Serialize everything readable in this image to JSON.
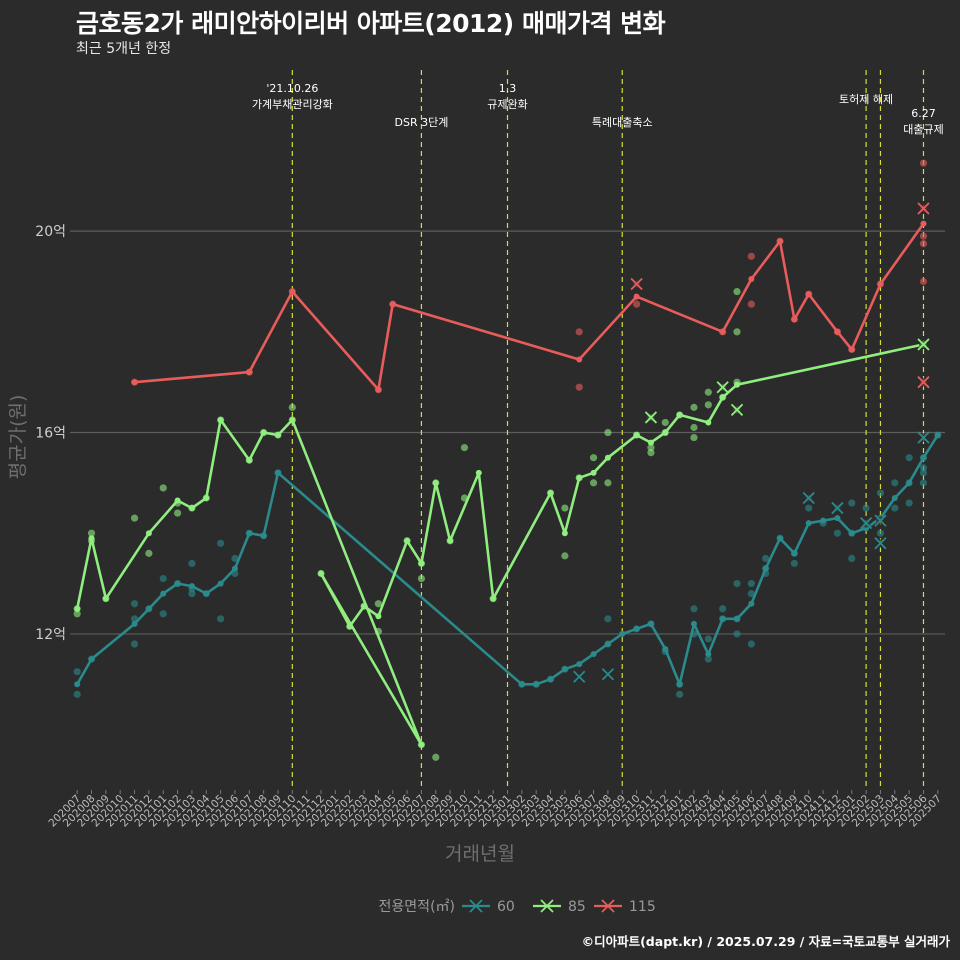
{
  "title": "금호동2가 래미안하이리버 아파트(2012) 매매가격 변화",
  "subtitle": "최근 5개년 한정",
  "caption": "©디아파트(dapt.kr) / 2025.07.29 / 자료=국토교통부 실거래가",
  "chart_data": {
    "type": "line",
    "xlabel": "거래년월",
    "ylabel": "평균가(원)",
    "categories": [
      "202007",
      "202008",
      "202009",
      "202010",
      "202011",
      "202012",
      "202101",
      "202102",
      "202103",
      "202104",
      "202105",
      "202106",
      "202107",
      "202108",
      "202109",
      "202110",
      "202111",
      "202112",
      "202201",
      "202202",
      "202203",
      "202204",
      "202205",
      "202206",
      "202207",
      "202208",
      "202209",
      "202210",
      "202211",
      "202212",
      "202301",
      "202302",
      "202303",
      "202304",
      "202305",
      "202306",
      "202307",
      "202308",
      "202309",
      "202310",
      "202311",
      "202312",
      "202401",
      "202402",
      "202403",
      "202404",
      "202405",
      "202406",
      "202407",
      "202408",
      "202409",
      "202410",
      "202411",
      "202412",
      "202501",
      "202502",
      "202503",
      "202504",
      "202505",
      "202506",
      "202507"
    ],
    "y_ticks": [
      {
        "value": 12,
        "label": "12억"
      },
      {
        "value": 16,
        "label": "16억"
      },
      {
        "value": 20,
        "label": "20억"
      }
    ],
    "ylim": [
      8.9,
      23.3
    ],
    "grid": true,
    "legend": {
      "title": "전용면적(㎡)",
      "position": "bottom"
    },
    "series": [
      {
        "name": "60",
        "color": "#2a8a8c",
        "line": [
          [
            "202007",
            11.0
          ],
          [
            "202008",
            11.5
          ],
          [
            "202011",
            12.2
          ],
          [
            "202012",
            12.5
          ],
          [
            "202101",
            12.8
          ],
          [
            "202102",
            13.0
          ],
          [
            "202103",
            12.95
          ],
          [
            "202104",
            12.8
          ],
          [
            "202105",
            13.0
          ],
          [
            "202106",
            13.3
          ],
          [
            "202107",
            14.0
          ],
          [
            "202108",
            13.95
          ],
          [
            "202109",
            15.2
          ],
          [
            "202302",
            11.0
          ],
          [
            "202303",
            11.0
          ],
          [
            "202304",
            11.1
          ],
          [
            "202305",
            11.3
          ],
          [
            "202306",
            11.4
          ],
          [
            "202307",
            11.6
          ],
          [
            "202308",
            11.8
          ],
          [
            "202309",
            12.0
          ],
          [
            "202310",
            12.1
          ],
          [
            "202311",
            12.2
          ],
          [
            "202312",
            11.7
          ],
          [
            "202401",
            11.0
          ],
          [
            "202402",
            12.2
          ],
          [
            "202403",
            11.6
          ],
          [
            "202404",
            12.3
          ],
          [
            "202405",
            12.3
          ],
          [
            "202406",
            12.6
          ],
          [
            "202407",
            13.3
          ],
          [
            "202408",
            13.9
          ],
          [
            "202409",
            13.6
          ],
          [
            "202410",
            14.2
          ],
          [
            "202411",
            14.25
          ],
          [
            "202412",
            14.3
          ],
          [
            "202501",
            14.0
          ],
          [
            "202502",
            14.1
          ],
          [
            "202503",
            14.3
          ],
          [
            "202504",
            14.7
          ],
          [
            "202505",
            15.0
          ],
          [
            "202506",
            15.5
          ],
          [
            "202507",
            15.95
          ]
        ],
        "points": [
          [
            "202007",
            11.25
          ],
          [
            "202007",
            10.8
          ],
          [
            "202008",
            11.5
          ],
          [
            "202011",
            12.6
          ],
          [
            "202011",
            12.3
          ],
          [
            "202011",
            11.8
          ],
          [
            "202012",
            12.5
          ],
          [
            "202101",
            13.1
          ],
          [
            "202101",
            12.4
          ],
          [
            "202102",
            13.0
          ],
          [
            "202103",
            12.9
          ],
          [
            "202103",
            12.8
          ],
          [
            "202103",
            13.4
          ],
          [
            "202104",
            12.8
          ],
          [
            "202105",
            12.3
          ],
          [
            "202105",
            13.8
          ],
          [
            "202106",
            13.5
          ],
          [
            "202106",
            13.2
          ],
          [
            "202107",
            14.0
          ],
          [
            "202108",
            13.95
          ],
          [
            "202109",
            15.2
          ],
          [
            "202302",
            11.0
          ],
          [
            "202303",
            11.0
          ],
          [
            "202304",
            11.1
          ],
          [
            "202305",
            11.3
          ],
          [
            "202308",
            12.3
          ],
          [
            "202308",
            11.8
          ],
          [
            "202310",
            12.1
          ],
          [
            "202311",
            12.2
          ],
          [
            "202312",
            11.65
          ],
          [
            "202401",
            10.8
          ],
          [
            "202401",
            11.0
          ],
          [
            "202402",
            12.5
          ],
          [
            "202402",
            12.0
          ],
          [
            "202403",
            11.5
          ],
          [
            "202403",
            11.9
          ],
          [
            "202404",
            12.3
          ],
          [
            "202404",
            12.5
          ],
          [
            "202405",
            12.3
          ],
          [
            "202405",
            12.0
          ],
          [
            "202405",
            13.0
          ],
          [
            "202406",
            12.8
          ],
          [
            "202406",
            11.8
          ],
          [
            "202406",
            13.0
          ],
          [
            "202407",
            13.3
          ],
          [
            "202407",
            13.2
          ],
          [
            "202407",
            13.5
          ],
          [
            "202408",
            13.9
          ],
          [
            "202409",
            13.6
          ],
          [
            "202409",
            13.4
          ],
          [
            "202410",
            14.5
          ],
          [
            "202410",
            14.7
          ],
          [
            "202411",
            14.2
          ],
          [
            "202412",
            14.5
          ],
          [
            "202412",
            14.0
          ],
          [
            "202501",
            14.0
          ],
          [
            "202501",
            14.6
          ],
          [
            "202501",
            13.5
          ],
          [
            "202502",
            14.2
          ],
          [
            "202502",
            14.5
          ],
          [
            "202503",
            14.3
          ],
          [
            "202503",
            14.0
          ],
          [
            "202503",
            14.8
          ],
          [
            "202504",
            14.5
          ],
          [
            "202504",
            15.0
          ],
          [
            "202505",
            15.0
          ],
          [
            "202505",
            15.5
          ],
          [
            "202505",
            14.6
          ],
          [
            "202506",
            15.5
          ],
          [
            "202506",
            15.2
          ],
          [
            "202506",
            15.0
          ],
          [
            "202506",
            15.3
          ],
          [
            "202507",
            15.95
          ]
        ],
        "peaks": [
          [
            "202306",
            11.15
          ],
          [
            "202308",
            11.2
          ],
          [
            "202410",
            14.7
          ],
          [
            "202412",
            14.5
          ],
          [
            "202502",
            14.2
          ],
          [
            "202503",
            13.8
          ],
          [
            "202503",
            14.25
          ],
          [
            "202506",
            15.9
          ]
        ]
      },
      {
        "name": "85",
        "color": "#90ee80",
        "line": [
          [
            "202007",
            12.5
          ],
          [
            "202008",
            13.9
          ],
          [
            "202009",
            12.7
          ],
          [
            "202012",
            14.0
          ],
          [
            "202102",
            14.65
          ],
          [
            "202103",
            14.5
          ],
          [
            "202104",
            14.7
          ],
          [
            "202105",
            16.25
          ],
          [
            "202107",
            15.45
          ],
          [
            "202108",
            16.0
          ],
          [
            "202109",
            15.95
          ],
          [
            "202110",
            16.25
          ],
          [
            "202207",
            9.8
          ],
          [
            "202112",
            13.2
          ],
          [
            "202202",
            12.15
          ],
          [
            "202203",
            12.55
          ],
          [
            "202204",
            12.35
          ],
          [
            "202206",
            13.85
          ],
          [
            "202207",
            13.4
          ],
          [
            "202208",
            15.0
          ],
          [
            "202209",
            13.85
          ],
          [
            "202211",
            15.2
          ],
          [
            "202212",
            12.7
          ],
          [
            "202304",
            14.8
          ],
          [
            "202305",
            14.0
          ],
          [
            "202306",
            15.1
          ],
          [
            "202307",
            15.2
          ],
          [
            "202308",
            15.5
          ],
          [
            "202310",
            15.95
          ],
          [
            "202311",
            15.8
          ],
          [
            "202312",
            16.0
          ],
          [
            "202401",
            16.35
          ],
          [
            "202403",
            16.2
          ],
          [
            "202404",
            16.7
          ],
          [
            "202405",
            16.95
          ],
          [
            "202506",
            17.75
          ]
        ],
        "points": [
          [
            "202007",
            12.5
          ],
          [
            "202007",
            12.4
          ],
          [
            "202008",
            14.0
          ],
          [
            "202008",
            13.85
          ],
          [
            "202009",
            12.7
          ],
          [
            "202011",
            14.3
          ],
          [
            "202012",
            13.6
          ],
          [
            "202101",
            14.9
          ],
          [
            "202102",
            14.6
          ],
          [
            "202102",
            14.4
          ],
          [
            "202103",
            14.5
          ],
          [
            "202104",
            14.7
          ],
          [
            "202105",
            16.25
          ],
          [
            "202107",
            15.45
          ],
          [
            "202108",
            16.0
          ],
          [
            "202109",
            15.95
          ],
          [
            "202110",
            16.5
          ],
          [
            "202110",
            16.25
          ],
          [
            "202207",
            9.8
          ],
          [
            "202208",
            9.55
          ],
          [
            "202112",
            13.2
          ],
          [
            "202202",
            12.15
          ],
          [
            "202203",
            12.55
          ],
          [
            "202204",
            12.05
          ],
          [
            "202204",
            12.6
          ],
          [
            "202206",
            13.85
          ],
          [
            "202207",
            13.4
          ],
          [
            "202207",
            13.1
          ],
          [
            "202208",
            15.0
          ],
          [
            "202209",
            13.85
          ],
          [
            "202210",
            15.7
          ],
          [
            "202210",
            14.7
          ],
          [
            "202212",
            12.7
          ],
          [
            "202304",
            14.8
          ],
          [
            "202305",
            14.5
          ],
          [
            "202305",
            13.55
          ],
          [
            "202306",
            15.1
          ],
          [
            "202307",
            15.5
          ],
          [
            "202307",
            15.0
          ],
          [
            "202308",
            16.0
          ],
          [
            "202308",
            15.0
          ],
          [
            "202310",
            15.95
          ],
          [
            "202311",
            16.3
          ],
          [
            "202311",
            15.7
          ],
          [
            "202311",
            15.6
          ],
          [
            "202312",
            16.0
          ],
          [
            "202312",
            16.2
          ],
          [
            "202401",
            16.35
          ],
          [
            "202402",
            16.1
          ],
          [
            "202402",
            15.9
          ],
          [
            "202402",
            16.5
          ],
          [
            "202403",
            16.8
          ],
          [
            "202403",
            16.55
          ],
          [
            "202404",
            16.7
          ],
          [
            "202404",
            16.9
          ],
          [
            "202405",
            17.0
          ],
          [
            "202405",
            18.8
          ],
          [
            "202405",
            18.0
          ],
          [
            "202405",
            16.45
          ],
          [
            "202506",
            17.75
          ]
        ],
        "peaks": [
          [
            "202311",
            16.3
          ],
          [
            "202404",
            16.9
          ],
          [
            "202405",
            16.45
          ],
          [
            "202506",
            17.75
          ]
        ]
      },
      {
        "name": "115",
        "color": "#e85c5c",
        "line": [
          [
            "202011",
            17.0
          ],
          [
            "202107",
            17.2
          ],
          [
            "202110",
            18.8
          ],
          [
            "202204",
            16.85
          ],
          [
            "202205",
            18.55
          ],
          [
            "202306",
            17.45
          ],
          [
            "202310",
            18.7
          ],
          [
            "202404",
            18.0
          ],
          [
            "202406",
            19.05
          ],
          [
            "202408",
            19.8
          ],
          [
            "202409",
            18.25
          ],
          [
            "202410",
            18.75
          ],
          [
            "202412",
            18.0
          ],
          [
            "202501",
            17.65
          ],
          [
            "202503",
            18.95
          ],
          [
            "202506",
            20.15
          ]
        ],
        "points": [
          [
            "202011",
            17.0
          ],
          [
            "202107",
            17.2
          ],
          [
            "202110",
            18.8
          ],
          [
            "202204",
            16.85
          ],
          [
            "202205",
            18.55
          ],
          [
            "202306",
            18.0
          ],
          [
            "202306",
            16.9
          ],
          [
            "202310",
            18.55
          ],
          [
            "202310",
            18.95
          ],
          [
            "202404",
            18.0
          ],
          [
            "202406",
            19.5
          ],
          [
            "202406",
            18.55
          ],
          [
            "202408",
            19.8
          ],
          [
            "202409",
            18.25
          ],
          [
            "202410",
            18.75
          ],
          [
            "202412",
            18.0
          ],
          [
            "202501",
            17.65
          ],
          [
            "202503",
            18.95
          ],
          [
            "202506",
            20.45
          ],
          [
            "202506",
            19.9
          ],
          [
            "202506",
            19.75
          ],
          [
            "202506",
            19.0
          ],
          [
            "202506",
            17.0
          ],
          [
            "202506",
            21.35
          ]
        ],
        "peaks": [
          [
            "202310",
            18.95
          ],
          [
            "202506",
            20.45
          ],
          [
            "202506",
            17.0
          ]
        ]
      }
    ],
    "events": [
      {
        "month": "202110",
        "lines": [
          "'21.10.26",
          "가계부채관리강화"
        ]
      },
      {
        "month": "202207",
        "lines": [
          "DSR 3단계"
        ]
      },
      {
        "month": "202301",
        "lines": [
          "1.3",
          "규제완화"
        ]
      },
      {
        "month": "202309",
        "lines": [
          "특례대출축소"
        ]
      },
      {
        "month": "202502",
        "lines": [
          "토허제 해제"
        ]
      },
      {
        "month": "202503",
        "lines": [
          ""
        ]
      },
      {
        "month": "202506",
        "lines": [
          "6.27",
          "대출규제"
        ]
      }
    ]
  }
}
